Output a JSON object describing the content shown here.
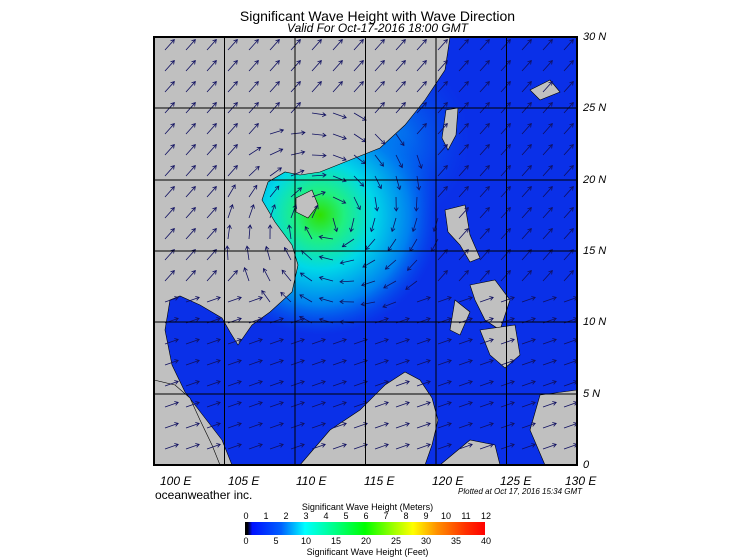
{
  "header": {
    "title": "Significant Wave Height with Wave Direction",
    "subtitle": "Valid For Oct-17-2016 18:00 GMT"
  },
  "map": {
    "lat_labels": [
      "30 N",
      "25 N",
      "20 N",
      "15 N",
      "10 N",
      "5 N",
      "0"
    ],
    "lon_labels": [
      "100 E",
      "105 E",
      "110 E",
      "115 E",
      "120 E",
      "125 E",
      "130 E"
    ],
    "land_color": "#c0c0c0",
    "ocean_low": "#0818e8",
    "peak_color": "#30e000"
  },
  "footer": {
    "brand": "oceanweather inc.",
    "plotted": "Plotted at Oct 17, 2016 15:34 GMT"
  },
  "colorbar": {
    "title_meters": "Significant Wave Height (Meters)",
    "title_feet": "Significant Wave Height (Feet)",
    "meters": [
      "0",
      "1",
      "2",
      "3",
      "4",
      "5",
      "6",
      "7",
      "8",
      "9",
      "10",
      "11",
      "12"
    ],
    "feet": [
      "0",
      "5",
      "10",
      "15",
      "20",
      "25",
      "30",
      "35",
      "40"
    ]
  }
}
